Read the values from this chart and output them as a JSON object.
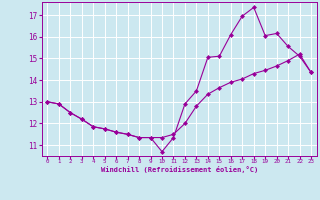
{
  "line1_x": [
    0,
    1,
    2,
    3,
    4,
    5,
    6,
    7,
    8,
    9,
    10,
    11,
    12,
    13,
    14,
    15,
    16,
    17,
    18,
    19,
    20,
    21,
    22,
    23
  ],
  "line1_y": [
    13.0,
    12.9,
    12.5,
    12.2,
    11.85,
    11.75,
    11.6,
    11.5,
    11.35,
    11.35,
    11.35,
    11.5,
    12.0,
    12.8,
    13.35,
    13.65,
    13.9,
    14.05,
    14.3,
    14.45,
    14.65,
    14.9,
    15.2,
    14.35
  ],
  "line2_x": [
    0,
    1,
    2,
    3,
    4,
    5,
    6,
    7,
    8,
    9,
    10,
    11,
    12,
    13,
    14,
    15,
    16,
    17,
    18,
    19,
    20,
    21,
    22,
    23
  ],
  "line2_y": [
    13.0,
    12.9,
    12.5,
    12.2,
    11.85,
    11.75,
    11.6,
    11.5,
    11.35,
    11.35,
    10.7,
    11.35,
    12.9,
    13.5,
    15.05,
    15.1,
    16.1,
    16.95,
    17.35,
    16.05,
    16.15,
    15.55,
    15.1,
    14.35
  ],
  "color": "#990099",
  "bg_color": "#cce8f0",
  "grid_color": "#ffffff",
  "xlabel": "Windchill (Refroidissement éolien,°C)",
  "xlim_min": -0.5,
  "xlim_max": 23.5,
  "ylim_min": 10.5,
  "ylim_max": 17.6,
  "yticks": [
    11,
    12,
    13,
    14,
    15,
    16,
    17
  ],
  "xticks": [
    0,
    1,
    2,
    3,
    4,
    5,
    6,
    7,
    8,
    9,
    10,
    11,
    12,
    13,
    14,
    15,
    16,
    17,
    18,
    19,
    20,
    21,
    22,
    23
  ],
  "marker": "D",
  "markersize": 2.0,
  "linewidth": 0.8
}
